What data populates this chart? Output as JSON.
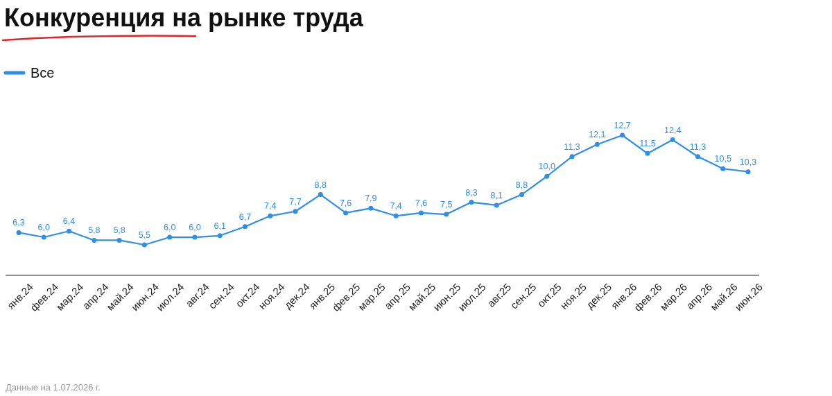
{
  "chart_data": {
    "type": "line",
    "title": "Конкуренция на рынке труда",
    "categories": [
      "янв.24",
      "фев.24",
      "мар.24",
      "апр.24",
      "май.24",
      "июн.24",
      "июл.24",
      "авг.24",
      "сен.24",
      "окт.24",
      "ноя.24",
      "дек.24",
      "янв.25",
      "фев.25",
      "мар.25",
      "апр.25",
      "май.25",
      "июн.25",
      "июл.25",
      "авг.25",
      "сен.25",
      "окт.25",
      "ноя.25",
      "дек.25",
      "янв.26",
      "фев.26",
      "мар.26",
      "апр.26",
      "май.26",
      "июн.26"
    ],
    "series": [
      {
        "name": "Все",
        "color": "#2f8fe8",
        "values": [
          6.3,
          6.0,
          6.4,
          5.8,
          5.8,
          5.5,
          6.0,
          6.0,
          6.1,
          6.7,
          7.4,
          7.7,
          8.8,
          7.6,
          7.9,
          7.4,
          7.6,
          7.5,
          8.3,
          8.1,
          8.8,
          10.0,
          11.3,
          12.1,
          12.7,
          11.5,
          12.4,
          11.3,
          10.5,
          10.3
        ],
        "value_labels": [
          "6,3",
          "6,0",
          "6,4",
          "5,8",
          "5,8",
          "5,5",
          "6,0",
          "6,0",
          "6,1",
          "6,7",
          "7,4",
          "7,7",
          "8,8",
          "7,6",
          "7,9",
          "7,4",
          "7,6",
          "7,5",
          "8,3",
          "8,1",
          "8,8",
          "10,0",
          "11,3",
          "12,1",
          "12,7",
          "11,5",
          "12,4",
          "11,3",
          "10,5",
          "10,3"
        ]
      }
    ],
    "marker": "circle",
    "line_style": "solid",
    "legend": "top left",
    "annotations": [
      "Данные на 1.07.2026 г."
    ]
  }
}
